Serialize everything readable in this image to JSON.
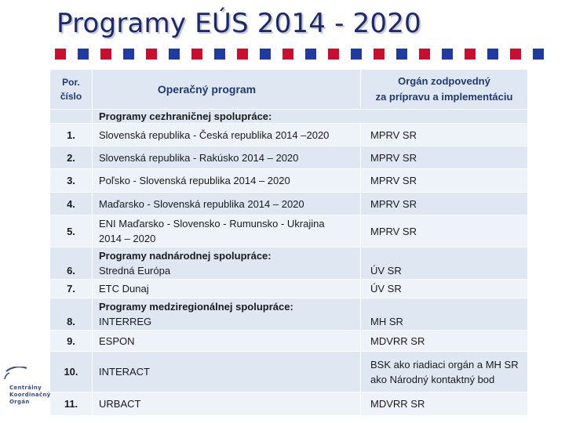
{
  "title": "Programy EÚS 2014 - 2020",
  "colors": {
    "title": "#1a2a6c",
    "square_red": "#c8102e",
    "square_blue": "#1f3aa0",
    "row_dark": "#dfe7f3",
    "row_light": "#eef2f9"
  },
  "table": {
    "headers": {
      "number_line1": "Por.",
      "number_line2": "číslo",
      "program": "Operačný program",
      "org_line1": "Orgán zodpovedný",
      "org_line2": "za prípravu a implementáciu"
    },
    "sections": {
      "cross_border": "Programy cezhraničnej spolupráce:",
      "transnational": "Programy nadnárodnej spolupráce:",
      "interregional": "Programy medziregionálnej spolupráce:"
    },
    "rows": [
      {
        "num": "1.",
        "program": "Slovenská republika - Česká republika 2014 –2020",
        "org": "MPRV SR"
      },
      {
        "num": "2.",
        "program": "Slovenská republika - Rakúsko 2014 – 2020",
        "org": "MPRV SR"
      },
      {
        "num": "3.",
        "program": "Poľsko - Slovenská republika 2014 – 2020",
        "org": "MPRV SR"
      },
      {
        "num": "4.",
        "program": "Maďarsko - Slovenská republika 2014 – 2020",
        "org": "MPRV SR"
      },
      {
        "num": "5.",
        "program_line1": "ENI Maďarsko - Slovensko - Rumunsko - Ukrajina",
        "program_line2": "2014 – 2020",
        "org": "MPRV SR"
      },
      {
        "num": "6.",
        "program": "Stredná Európa",
        "org": "ÚV SR"
      },
      {
        "num": "7.",
        "program": "ETC Dunaj",
        "org": "ÚV SR"
      },
      {
        "num": "8.",
        "program": "INTERREG",
        "org": "MH SR"
      },
      {
        "num": "9.",
        "program": "ESPON",
        "org": "MDVRR SR"
      },
      {
        "num": "10.",
        "program": "INTERACT",
        "org_line1": "BSK ako riadiaci orgán a MH SR",
        "org_line2": "ako Národný kontaktný bod"
      },
      {
        "num": "11.",
        "program": "URBACT",
        "org": "MDVRR SR"
      }
    ]
  },
  "logo": {
    "line1": "Centrálny",
    "line2": "Koordinačný",
    "line3": "Orgán"
  }
}
